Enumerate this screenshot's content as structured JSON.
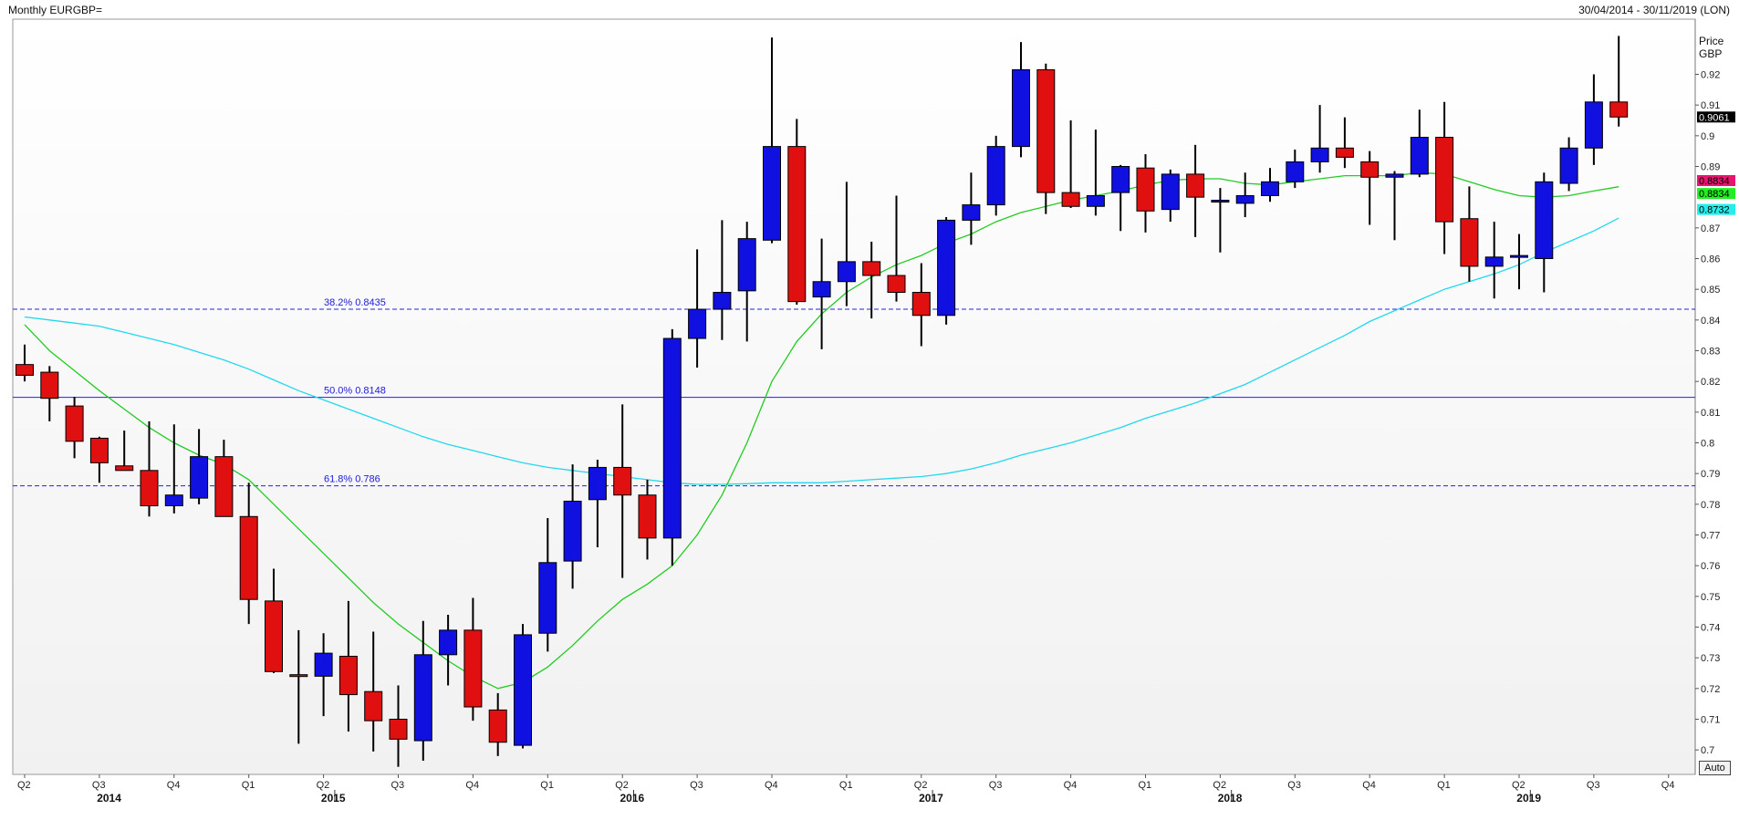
{
  "header": {
    "title": "Monthly EURGBP=",
    "range": "30/04/2014 - 30/11/2019 (LON)"
  },
  "axis": {
    "price_label_line1": "Price",
    "price_label_line2": "GBP",
    "auto_label": "Auto"
  },
  "colors": {
    "up": "#1010e0",
    "down": "#e01010",
    "ma_short": "#22cc22",
    "ma_long": "#22d8ee",
    "fib": "#2222dd",
    "last_price_bg": "#000000",
    "ma_short_tag_bg": "#e8156e",
    "ma_short_tag2_bg": "#22ee22",
    "ma_long_tag_bg": "#22eeee"
  },
  "chart_data": {
    "type": "candlestick",
    "ylim": [
      0.695,
      0.935
    ],
    "yticks": [
      "0.7",
      "0.71",
      "0.72",
      "0.73",
      "0.74",
      "0.75",
      "0.76",
      "0.77",
      "0.78",
      "0.79",
      "0.8",
      "0.81",
      "0.82",
      "0.83",
      "0.84",
      "0.85",
      "0.86",
      "0.87",
      "0.89",
      "0.9",
      "0.91",
      "0.92"
    ],
    "x_start": "2014-04",
    "quarter_labels": [
      {
        "label": "Q2",
        "month": 0
      },
      {
        "label": "Q3",
        "month": 3
      },
      {
        "label": "Q4",
        "month": 6
      },
      {
        "label": "Q1",
        "month": 9
      },
      {
        "label": "Q2",
        "month": 12
      },
      {
        "label": "Q3",
        "month": 15
      },
      {
        "label": "Q4",
        "month": 18
      },
      {
        "label": "Q1",
        "month": 21
      },
      {
        "label": "Q2",
        "month": 24
      },
      {
        "label": "Q3",
        "month": 27
      },
      {
        "label": "Q4",
        "month": 30
      },
      {
        "label": "Q1",
        "month": 33
      },
      {
        "label": "Q2",
        "month": 36
      },
      {
        "label": "Q3",
        "month": 39
      },
      {
        "label": "Q4",
        "month": 42
      },
      {
        "label": "Q1",
        "month": 45
      },
      {
        "label": "Q2",
        "month": 48
      },
      {
        "label": "Q3",
        "month": 51
      },
      {
        "label": "Q4",
        "month": 54
      },
      {
        "label": "Q1",
        "month": 57
      },
      {
        "label": "Q2",
        "month": 60
      },
      {
        "label": "Q3",
        "month": 63
      },
      {
        "label": "Q4",
        "month": 66
      }
    ],
    "year_labels": [
      {
        "label": "2014",
        "month": 4
      },
      {
        "label": "2015",
        "month": 13
      },
      {
        "label": "2016",
        "month": 25
      },
      {
        "label": "2017",
        "month": 37
      },
      {
        "label": "2018",
        "month": 49
      },
      {
        "label": "2019",
        "month": 61
      }
    ],
    "candles": [
      {
        "m": 0,
        "o": 0.8255,
        "h": 0.832,
        "l": 0.82,
        "c": 0.822
      },
      {
        "m": 1,
        "o": 0.823,
        "h": 0.825,
        "l": 0.807,
        "c": 0.8145
      },
      {
        "m": 2,
        "o": 0.812,
        "h": 0.815,
        "l": 0.795,
        "c": 0.8005
      },
      {
        "m": 3,
        "o": 0.8015,
        "h": 0.802,
        "l": 0.787,
        "c": 0.7935
      },
      {
        "m": 4,
        "o": 0.7925,
        "h": 0.804,
        "l": 0.791,
        "c": 0.791
      },
      {
        "m": 5,
        "o": 0.791,
        "h": 0.807,
        "l": 0.776,
        "c": 0.7795
      },
      {
        "m": 6,
        "o": 0.7795,
        "h": 0.806,
        "l": 0.777,
        "c": 0.783
      },
      {
        "m": 7,
        "o": 0.782,
        "h": 0.8045,
        "l": 0.78,
        "c": 0.7955
      },
      {
        "m": 8,
        "o": 0.7955,
        "h": 0.801,
        "l": 0.776,
        "c": 0.776
      },
      {
        "m": 9,
        "o": 0.776,
        "h": 0.787,
        "l": 0.741,
        "c": 0.749
      },
      {
        "m": 10,
        "o": 0.7485,
        "h": 0.759,
        "l": 0.725,
        "c": 0.7255
      },
      {
        "m": 11,
        "o": 0.7245,
        "h": 0.739,
        "l": 0.702,
        "c": 0.724
      },
      {
        "m": 12,
        "o": 0.724,
        "h": 0.738,
        "l": 0.711,
        "c": 0.7315
      },
      {
        "m": 13,
        "o": 0.7305,
        "h": 0.7485,
        "l": 0.706,
        "c": 0.718
      },
      {
        "m": 14,
        "o": 0.719,
        "h": 0.7385,
        "l": 0.6995,
        "c": 0.7095
      },
      {
        "m": 15,
        "o": 0.71,
        "h": 0.721,
        "l": 0.6945,
        "c": 0.7035
      },
      {
        "m": 16,
        "o": 0.703,
        "h": 0.742,
        "l": 0.6965,
        "c": 0.731
      },
      {
        "m": 17,
        "o": 0.731,
        "h": 0.744,
        "l": 0.721,
        "c": 0.739
      },
      {
        "m": 18,
        "o": 0.739,
        "h": 0.7495,
        "l": 0.7095,
        "c": 0.714
      },
      {
        "m": 19,
        "o": 0.713,
        "h": 0.7185,
        "l": 0.698,
        "c": 0.7025
      },
      {
        "m": 20,
        "o": 0.7015,
        "h": 0.741,
        "l": 0.7005,
        "c": 0.7375
      },
      {
        "m": 21,
        "o": 0.738,
        "h": 0.7755,
        "l": 0.732,
        "c": 0.761
      },
      {
        "m": 22,
        "o": 0.7615,
        "h": 0.793,
        "l": 0.7525,
        "c": 0.781
      },
      {
        "m": 23,
        "o": 0.7815,
        "h": 0.7945,
        "l": 0.766,
        "c": 0.792
      },
      {
        "m": 24,
        "o": 0.792,
        "h": 0.8125,
        "l": 0.756,
        "c": 0.783
      },
      {
        "m": 25,
        "o": 0.783,
        "h": 0.788,
        "l": 0.762,
        "c": 0.769
      },
      {
        "m": 26,
        "o": 0.769,
        "h": 0.837,
        "l": 0.76,
        "c": 0.834
      },
      {
        "m": 27,
        "o": 0.834,
        "h": 0.863,
        "l": 0.8245,
        "c": 0.8435
      },
      {
        "m": 28,
        "o": 0.8435,
        "h": 0.8725,
        "l": 0.8335,
        "c": 0.849
      },
      {
        "m": 29,
        "o": 0.8495,
        "h": 0.872,
        "l": 0.833,
        "c": 0.8665
      },
      {
        "m": 30,
        "o": 0.866,
        "h": 0.932,
        "l": 0.865,
        "c": 0.8965
      },
      {
        "m": 31,
        "o": 0.8965,
        "h": 0.9055,
        "l": 0.845,
        "c": 0.846
      },
      {
        "m": 32,
        "o": 0.8475,
        "h": 0.8665,
        "l": 0.8305,
        "c": 0.8525
      },
      {
        "m": 33,
        "o": 0.8525,
        "h": 0.885,
        "l": 0.8445,
        "c": 0.859
      },
      {
        "m": 34,
        "o": 0.859,
        "h": 0.8655,
        "l": 0.8405,
        "c": 0.8545
      },
      {
        "m": 35,
        "o": 0.8545,
        "h": 0.8805,
        "l": 0.846,
        "c": 0.849
      },
      {
        "m": 36,
        "o": 0.849,
        "h": 0.8585,
        "l": 0.8315,
        "c": 0.8415
      },
      {
        "m": 37,
        "o": 0.8415,
        "h": 0.8735,
        "l": 0.8385,
        "c": 0.8725
      },
      {
        "m": 38,
        "o": 0.8725,
        "h": 0.888,
        "l": 0.8645,
        "c": 0.8775
      },
      {
        "m": 39,
        "o": 0.8775,
        "h": 0.9,
        "l": 0.874,
        "c": 0.8965
      },
      {
        "m": 40,
        "o": 0.8965,
        "h": 0.9305,
        "l": 0.893,
        "c": 0.9215
      },
      {
        "m": 41,
        "o": 0.9215,
        "h": 0.9235,
        "l": 0.8745,
        "c": 0.8815
      },
      {
        "m": 42,
        "o": 0.8815,
        "h": 0.905,
        "l": 0.8765,
        "c": 0.877
      },
      {
        "m": 43,
        "o": 0.877,
        "h": 0.902,
        "l": 0.874,
        "c": 0.8805
      },
      {
        "m": 44,
        "o": 0.8815,
        "h": 0.8905,
        "l": 0.869,
        "c": 0.89
      },
      {
        "m": 45,
        "o": 0.8895,
        "h": 0.894,
        "l": 0.8685,
        "c": 0.8755
      },
      {
        "m": 46,
        "o": 0.876,
        "h": 0.889,
        "l": 0.872,
        "c": 0.8875
      },
      {
        "m": 47,
        "o": 0.8875,
        "h": 0.897,
        "l": 0.867,
        "c": 0.88
      },
      {
        "m": 48,
        "o": 0.879,
        "h": 0.883,
        "l": 0.862,
        "c": 0.879
      },
      {
        "m": 49,
        "o": 0.878,
        "h": 0.888,
        "l": 0.8735,
        "c": 0.8805
      },
      {
        "m": 50,
        "o": 0.8805,
        "h": 0.8895,
        "l": 0.8785,
        "c": 0.885
      },
      {
        "m": 51,
        "o": 0.885,
        "h": 0.8955,
        "l": 0.883,
        "c": 0.8915
      },
      {
        "m": 52,
        "o": 0.8915,
        "h": 0.91,
        "l": 0.888,
        "c": 0.896
      },
      {
        "m": 53,
        "o": 0.896,
        "h": 0.906,
        "l": 0.8895,
        "c": 0.893
      },
      {
        "m": 54,
        "o": 0.8915,
        "h": 0.895,
        "l": 0.871,
        "c": 0.8865
      },
      {
        "m": 55,
        "o": 0.8865,
        "h": 0.8885,
        "l": 0.866,
        "c": 0.8875
      },
      {
        "m": 56,
        "o": 0.8875,
        "h": 0.9085,
        "l": 0.8865,
        "c": 0.8995
      },
      {
        "m": 57,
        "o": 0.8995,
        "h": 0.911,
        "l": 0.8615,
        "c": 0.872
      },
      {
        "m": 58,
        "o": 0.873,
        "h": 0.8835,
        "l": 0.8525,
        "c": 0.8575
      },
      {
        "m": 59,
        "o": 0.8575,
        "h": 0.872,
        "l": 0.847,
        "c": 0.8605
      },
      {
        "m": 60,
        "o": 0.8605,
        "h": 0.868,
        "l": 0.85,
        "c": 0.861
      },
      {
        "m": 61,
        "o": 0.86,
        "h": 0.888,
        "l": 0.849,
        "c": 0.885
      },
      {
        "m": 62,
        "o": 0.8845,
        "h": 0.8995,
        "l": 0.882,
        "c": 0.896
      },
      {
        "m": 63,
        "o": 0.896,
        "h": 0.92,
        "l": 0.8905,
        "c": 0.911
      },
      {
        "m": 64,
        "o": 0.911,
        "h": 0.9325,
        "l": 0.903,
        "c": 0.9061
      }
    ],
    "ma_short": [
      [
        0,
        0.8385
      ],
      [
        1,
        0.83
      ],
      [
        2,
        0.8235
      ],
      [
        3,
        0.817
      ],
      [
        4,
        0.811
      ],
      [
        5,
        0.805
      ],
      [
        6,
        0.8
      ],
      [
        7,
        0.796
      ],
      [
        8,
        0.793
      ],
      [
        9,
        0.788
      ],
      [
        10,
        0.78
      ],
      [
        11,
        0.772
      ],
      [
        12,
        0.764
      ],
      [
        13,
        0.756
      ],
      [
        14,
        0.748
      ],
      [
        15,
        0.741
      ],
      [
        16,
        0.735
      ],
      [
        17,
        0.729
      ],
      [
        18,
        0.724
      ],
      [
        19,
        0.72
      ],
      [
        20,
        0.722
      ],
      [
        21,
        0.727
      ],
      [
        22,
        0.734
      ],
      [
        23,
        0.742
      ],
      [
        24,
        0.749
      ],
      [
        25,
        0.754
      ],
      [
        26,
        0.76
      ],
      [
        27,
        0.77
      ],
      [
        28,
        0.783
      ],
      [
        29,
        0.8
      ],
      [
        30,
        0.82
      ],
      [
        31,
        0.833
      ],
      [
        32,
        0.842
      ],
      [
        33,
        0.849
      ],
      [
        34,
        0.854
      ],
      [
        35,
        0.858
      ],
      [
        36,
        0.861
      ],
      [
        37,
        0.865
      ],
      [
        38,
        0.868
      ],
      [
        39,
        0.872
      ],
      [
        40,
        0.875
      ],
      [
        41,
        0.877
      ],
      [
        42,
        0.879
      ],
      [
        43,
        0.8805
      ],
      [
        44,
        0.882
      ],
      [
        45,
        0.884
      ],
      [
        46,
        0.8855
      ],
      [
        47,
        0.886
      ],
      [
        48,
        0.886
      ],
      [
        49,
        0.8845
      ],
      [
        50,
        0.884
      ],
      [
        51,
        0.885
      ],
      [
        52,
        0.886
      ],
      [
        53,
        0.887
      ],
      [
        54,
        0.887
      ],
      [
        55,
        0.887
      ],
      [
        56,
        0.888
      ],
      [
        57,
        0.8875
      ],
      [
        58,
        0.885
      ],
      [
        59,
        0.8825
      ],
      [
        60,
        0.8805
      ],
      [
        61,
        0.88
      ],
      [
        62,
        0.8805
      ],
      [
        63,
        0.882
      ],
      [
        64,
        0.8834
      ]
    ],
    "ma_long": [
      [
        0,
        0.841
      ],
      [
        1,
        0.84
      ],
      [
        2,
        0.839
      ],
      [
        3,
        0.838
      ],
      [
        4,
        0.836
      ],
      [
        5,
        0.834
      ],
      [
        6,
        0.832
      ],
      [
        7,
        0.8295
      ],
      [
        8,
        0.827
      ],
      [
        9,
        0.824
      ],
      [
        10,
        0.8205
      ],
      [
        11,
        0.817
      ],
      [
        12,
        0.814
      ],
      [
        13,
        0.811
      ],
      [
        14,
        0.808
      ],
      [
        15,
        0.805
      ],
      [
        16,
        0.802
      ],
      [
        17,
        0.7995
      ],
      [
        18,
        0.7975
      ],
      [
        19,
        0.7955
      ],
      [
        20,
        0.7935
      ],
      [
        21,
        0.792
      ],
      [
        22,
        0.791
      ],
      [
        23,
        0.79
      ],
      [
        24,
        0.789
      ],
      [
        25,
        0.788
      ],
      [
        26,
        0.787
      ],
      [
        27,
        0.7865
      ],
      [
        28,
        0.7865
      ],
      [
        29,
        0.7867
      ],
      [
        30,
        0.787
      ],
      [
        31,
        0.787
      ],
      [
        32,
        0.787
      ],
      [
        33,
        0.7875
      ],
      [
        34,
        0.788
      ],
      [
        35,
        0.7885
      ],
      [
        36,
        0.789
      ],
      [
        37,
        0.79
      ],
      [
        38,
        0.7915
      ],
      [
        39,
        0.7935
      ],
      [
        40,
        0.796
      ],
      [
        41,
        0.798
      ],
      [
        42,
        0.8
      ],
      [
        43,
        0.8025
      ],
      [
        44,
        0.805
      ],
      [
        45,
        0.808
      ],
      [
        46,
        0.8105
      ],
      [
        47,
        0.813
      ],
      [
        48,
        0.816
      ],
      [
        49,
        0.819
      ],
      [
        50,
        0.823
      ],
      [
        51,
        0.827
      ],
      [
        52,
        0.831
      ],
      [
        53,
        0.835
      ],
      [
        54,
        0.8395
      ],
      [
        55,
        0.843
      ],
      [
        56,
        0.8465
      ],
      [
        57,
        0.85
      ],
      [
        58,
        0.8525
      ],
      [
        59,
        0.855
      ],
      [
        60,
        0.858
      ],
      [
        61,
        0.862
      ],
      [
        62,
        0.8655
      ],
      [
        63,
        0.869
      ],
      [
        64,
        0.8732
      ]
    ],
    "fib_levels": [
      {
        "label": "38.2% 0.8435",
        "value": 0.8435,
        "dashed": true
      },
      {
        "label": "50.0% 0.8148",
        "value": 0.8148,
        "dashed": false
      },
      {
        "label": "61.8% 0.786",
        "value": 0.786,
        "dashed": true
      }
    ],
    "tags": [
      {
        "label": "0.9061",
        "value": 0.9061,
        "bg": "#000000",
        "fg": "#ffffff"
      },
      {
        "label": "0.8834",
        "value": 0.8854,
        "bg": "#e8156e",
        "fg": "#000000"
      },
      {
        "label": "0.8834",
        "value": 0.8812,
        "bg": "#22ee22",
        "fg": "#000000"
      },
      {
        "label": "0.8732",
        "value": 0.876,
        "bg": "#22eeee",
        "fg": "#000000"
      }
    ]
  }
}
